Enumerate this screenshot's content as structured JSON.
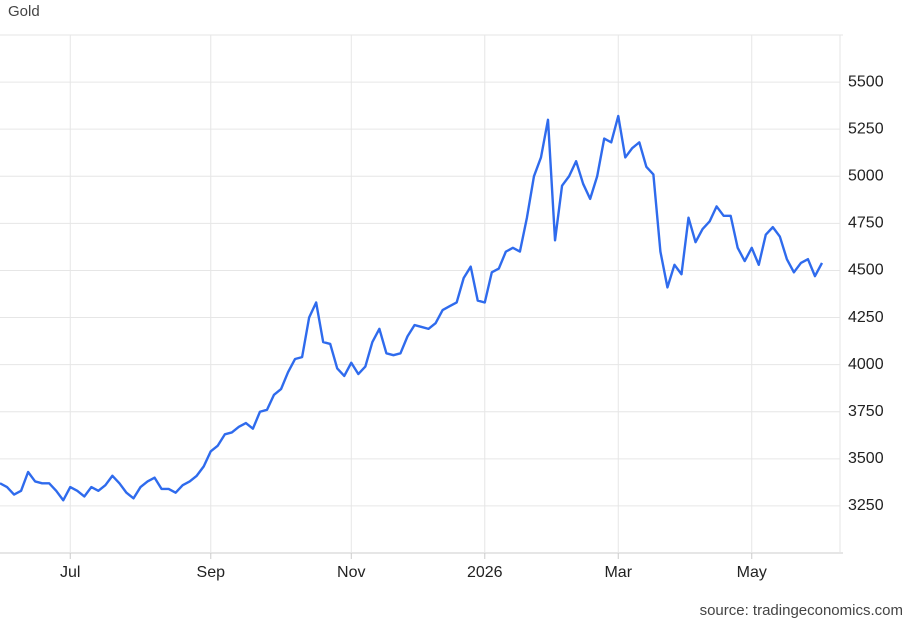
{
  "chart_data": {
    "type": "line",
    "title": "Gold",
    "source": "source: tradingeconomics.com",
    "categories": [
      null,
      null,
      null,
      null,
      null,
      null,
      null,
      null,
      null,
      null,
      "Jul",
      null,
      null,
      null,
      null,
      null,
      null,
      null,
      null,
      null,
      null,
      null,
      null,
      null,
      null,
      null,
      null,
      null,
      null,
      null,
      "Sep",
      null,
      null,
      null,
      null,
      null,
      null,
      null,
      null,
      null,
      null,
      null,
      null,
      null,
      null,
      null,
      null,
      null,
      null,
      null,
      "Nov",
      null,
      null,
      null,
      null,
      null,
      null,
      null,
      null,
      null,
      null,
      null,
      null,
      null,
      null,
      null,
      null,
      null,
      null,
      "2026",
      null,
      null,
      null,
      null,
      null,
      null,
      null,
      null,
      null,
      null,
      null,
      null,
      null,
      null,
      null,
      null,
      null,
      null,
      "Mar",
      null,
      null,
      null,
      null,
      null,
      null,
      null,
      null,
      null,
      null,
      null,
      null,
      null,
      null,
      null,
      null,
      null,
      null,
      "May",
      null,
      null,
      null,
      null,
      null,
      null,
      null,
      null,
      null,
      null
    ],
    "series": [
      {
        "name": "Gold",
        "color": "#2f6bed",
        "values": [
          3370,
          3350,
          3310,
          3330,
          3430,
          3380,
          3370,
          3370,
          3330,
          3280,
          3350,
          3330,
          3300,
          3350,
          3330,
          3360,
          3410,
          3370,
          3320,
          3290,
          3350,
          3380,
          3400,
          3340,
          3340,
          3320,
          3360,
          3380,
          3410,
          3460,
          3540,
          3570,
          3630,
          3640,
          3670,
          3690,
          3660,
          3750,
          3760,
          3840,
          3870,
          3960,
          4030,
          4040,
          4250,
          4330,
          4120,
          4110,
          3980,
          3940,
          4010,
          3950,
          3990,
          4120,
          4190,
          4060,
          4050,
          4060,
          4150,
          4210,
          4200,
          4190,
          4220,
          4290,
          4310,
          4330,
          4460,
          4520,
          4340,
          4330,
          4490,
          4510,
          4600,
          4620,
          4600,
          4780,
          5000,
          5100,
          5300,
          4660,
          4950,
          5000,
          5080,
          4960,
          4880,
          5000,
          5200,
          5180,
          5320,
          5100,
          5150,
          5180,
          5050,
          5010,
          4600,
          4410,
          4530,
          4480,
          4780,
          4650,
          4720,
          4760,
          4840,
          4790,
          4790,
          4620,
          4550,
          4620,
          4530,
          4690,
          4730,
          4680,
          4560,
          4490,
          4540,
          4560,
          4470,
          4540
        ]
      }
    ],
    "ylim": [
      3000,
      5750
    ],
    "yticks": [
      3250,
      3500,
      3750,
      4000,
      4250,
      4500,
      4750,
      5000,
      5250,
      5500
    ],
    "grid": true
  }
}
